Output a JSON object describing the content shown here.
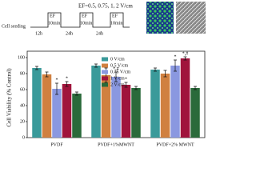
{
  "schematic": {
    "label": "EF=0.5, 0.75, 1, 2 V/cm",
    "seeding": "Cell seeding",
    "steps": [
      "12h",
      "EF",
      "10min",
      "24h",
      "EF",
      "10min",
      "24h",
      "EF",
      "10min"
    ]
  },
  "chart_data": {
    "type": "bar",
    "ylabel": "Cell Viability (% Control)",
    "categories": [
      "PVDF",
      "PVDF+1%MWNT",
      "PVDF+2% MWNT"
    ],
    "ylim": [
      0,
      100
    ],
    "yticks": [
      0,
      20,
      40,
      60,
      80,
      100
    ],
    "legend": "top-center",
    "series": [
      {
        "name": "0 V/cm",
        "color": "#3a9a9a",
        "values": [
          87,
          90,
          85
        ],
        "errors": [
          2,
          2,
          2
        ],
        "markers": [
          null,
          null,
          null
        ]
      },
      {
        "name": "0.5 V/cm",
        "color": "#d08040",
        "values": [
          79,
          78,
          80
        ],
        "errors": [
          3,
          9,
          4
        ],
        "markers": [
          null,
          null,
          null
        ]
      },
      {
        "name": "0.75 V/cm",
        "color": "#8a98e0",
        "values": [
          61,
          76,
          90
        ],
        "errors": [
          7,
          6,
          7
        ],
        "markers": [
          "*",
          "*,#",
          "*"
        ]
      },
      {
        "name": "1 V/cm",
        "color": "#a0143c",
        "values": [
          67,
          66,
          99
        ],
        "errors": [
          3,
          3,
          2
        ],
        "markers": [
          "*",
          "*",
          "*,#"
        ]
      },
      {
        "name": "2 V/cm",
        "color": "#2a6a3a",
        "values": [
          55,
          62,
          62
        ],
        "errors": [
          2,
          2,
          2
        ],
        "markers": [
          null,
          null,
          null
        ]
      }
    ]
  }
}
